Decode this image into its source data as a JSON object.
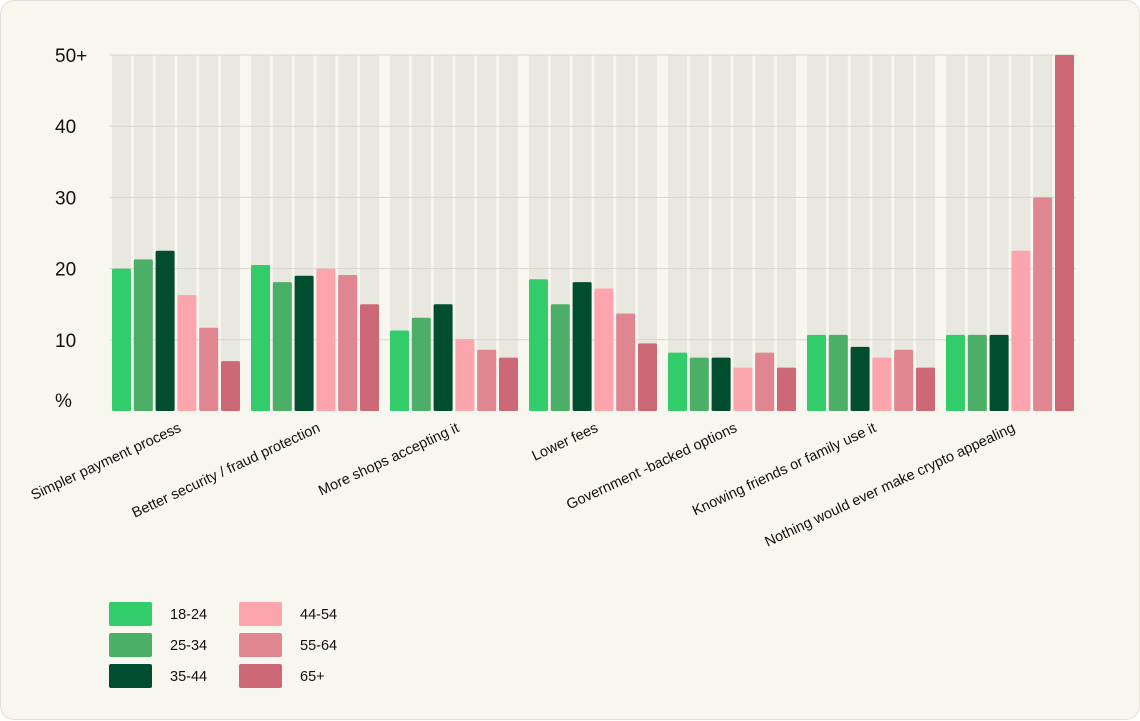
{
  "chart_data": {
    "type": "bar",
    "title": "",
    "xlabel": "",
    "ylabel": "%",
    "ylim": [
      0,
      50
    ],
    "yticks": [
      "%",
      "10",
      "20",
      "30",
      "40",
      "50+"
    ],
    "categories": [
      "Simpler payment process",
      "Better security / fraud protection",
      "More shops accepting it",
      "Lower fees",
      "Government -backed options",
      "Knowing friends or family use it",
      "Nothing would ever make crypto appealing"
    ],
    "series": [
      {
        "name": "18-24",
        "color": "#33cc6b",
        "values": [
          20,
          20.5,
          11.3,
          18.5,
          8.2,
          10.7,
          10.7
        ]
      },
      {
        "name": "25-34",
        "color": "#4caf68",
        "values": [
          21.3,
          18.1,
          13.1,
          15,
          7.5,
          10.7,
          10.7
        ]
      },
      {
        "name": "35-44",
        "color": "#004d30",
        "values": [
          22.5,
          19,
          15,
          18.1,
          7.5,
          9,
          10.7
        ]
      },
      {
        "name": "44-54",
        "color": "#fca5ad",
        "values": [
          16.3,
          20,
          10.1,
          17.2,
          6.1,
          7.5,
          22.5
        ]
      },
      {
        "name": "55-64",
        "color": "#df8690",
        "values": [
          11.7,
          19.1,
          8.6,
          13.7,
          8.2,
          8.6,
          30
        ]
      },
      {
        "name": "65+",
        "color": "#cd6876",
        "values": [
          7,
          15,
          7.5,
          9.5,
          6.1,
          6.1,
          50
        ]
      }
    ],
    "grid": true,
    "legend_position": "bottom-left"
  },
  "colors": {
    "card_background": "#f7f6ef",
    "column_background": "#e8e8e0",
    "gridline": "#d6d6cd"
  }
}
